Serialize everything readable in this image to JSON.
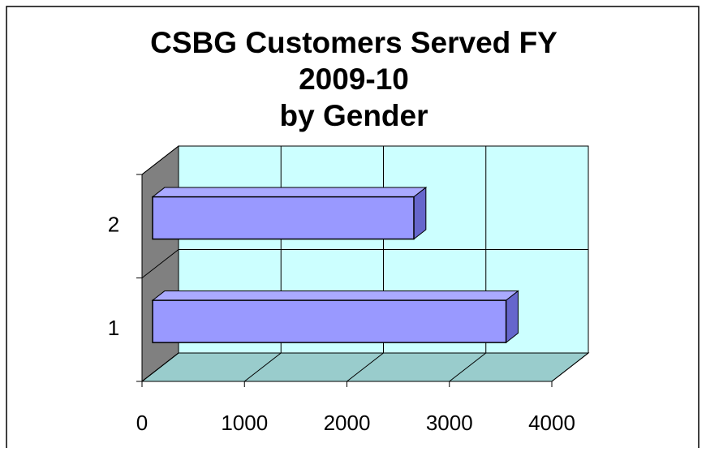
{
  "chart_data": {
    "type": "bar3d_horizontal",
    "title": [
      "CSBG Customers Served FY",
      "2009-10",
      "by Gender"
    ],
    "categories": [
      "1",
      "2"
    ],
    "values": [
      3450,
      2550
    ],
    "color": "#9999ff",
    "xlim": [
      0,
      4000
    ],
    "xticks": [
      0,
      1000,
      2000,
      3000,
      4000
    ],
    "grid": true
  }
}
